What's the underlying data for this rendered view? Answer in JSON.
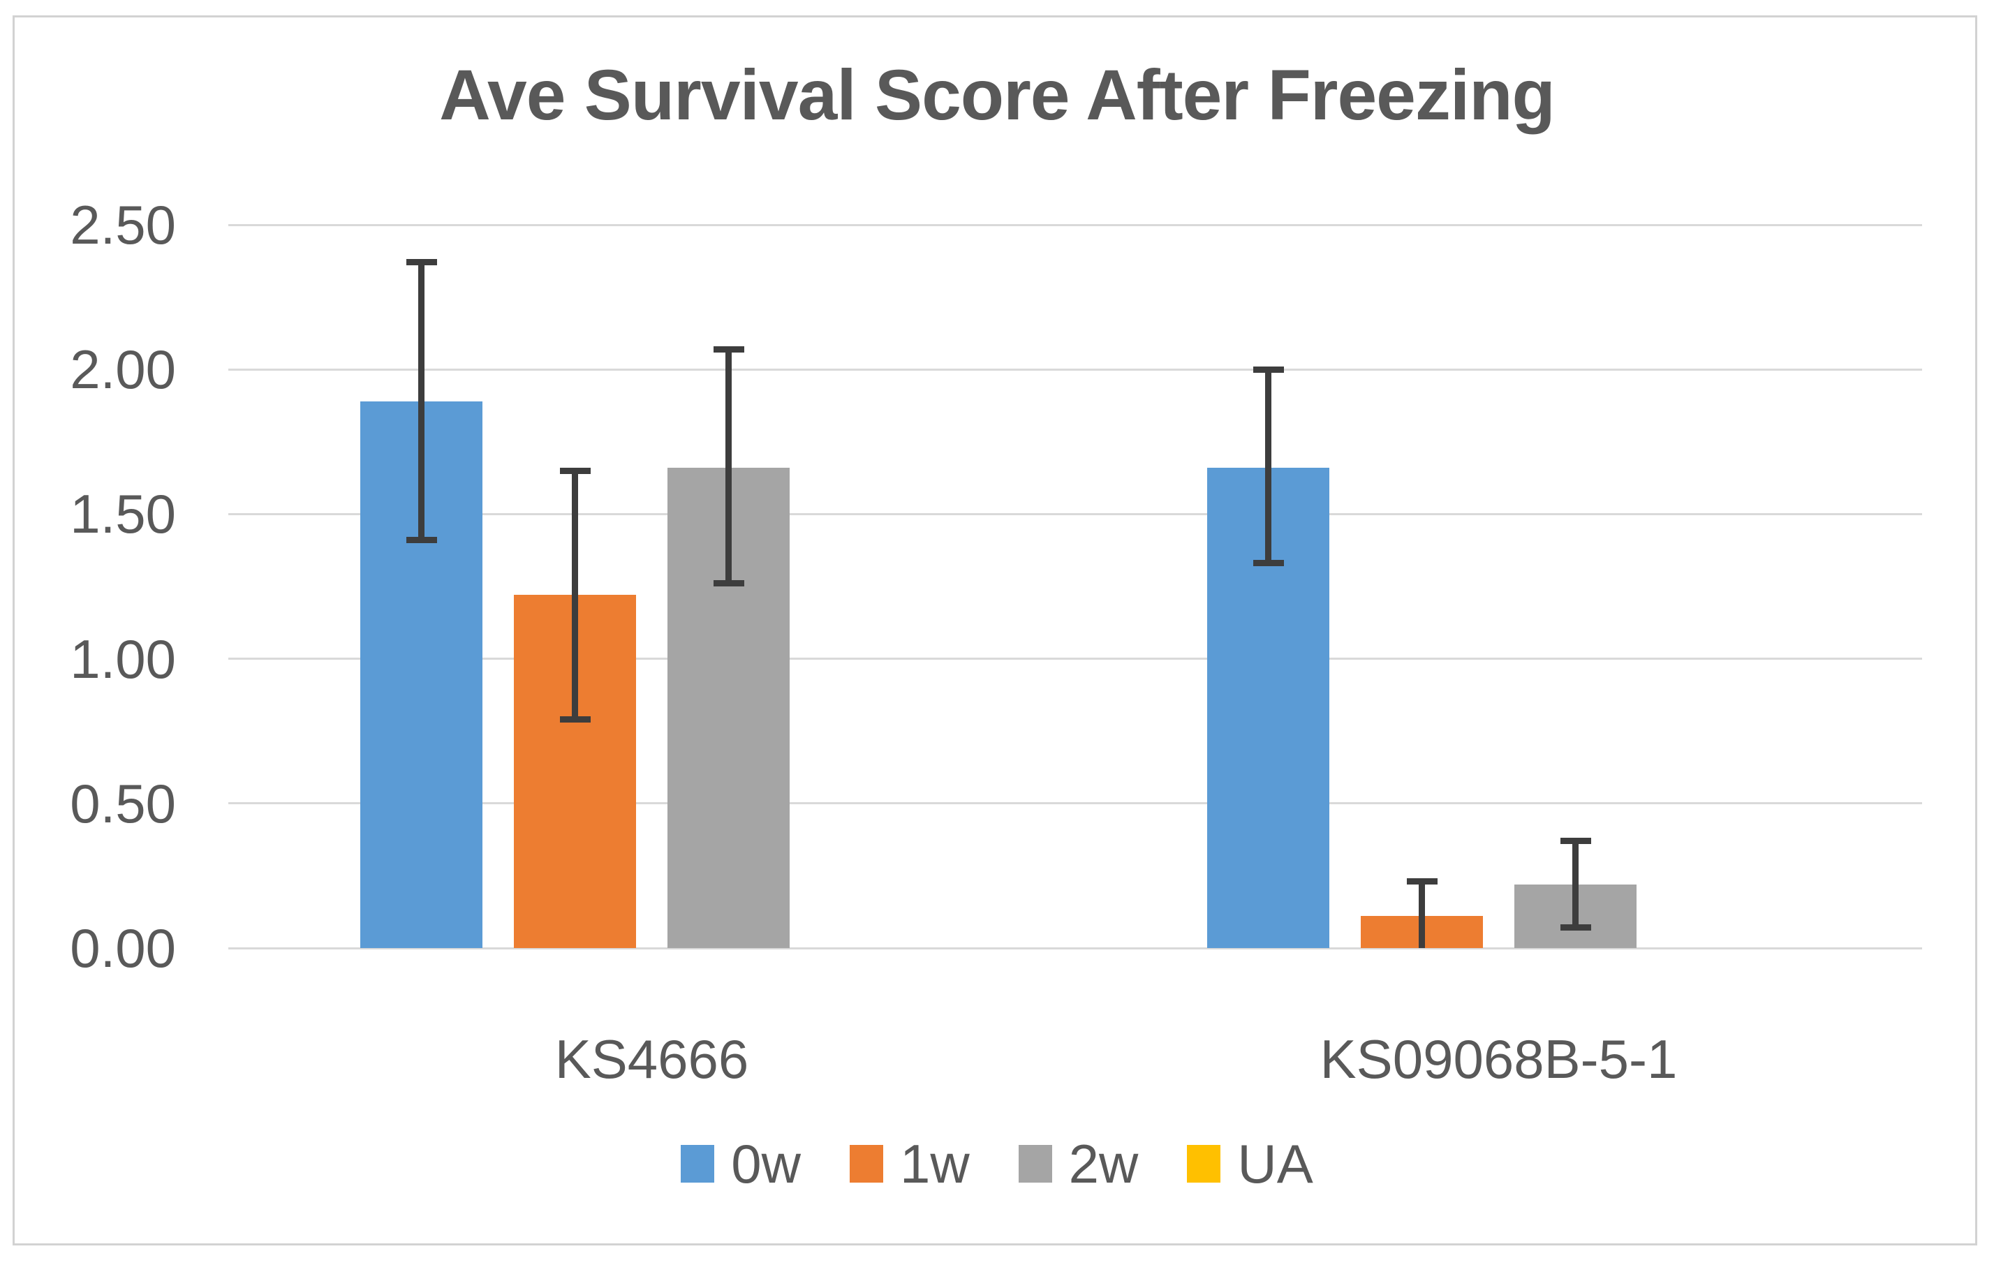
{
  "chart_data": {
    "type": "bar",
    "title": "Ave Survival Score After Freezing",
    "categories": [
      "KS4666",
      "KS09068B-5-1"
    ],
    "series": [
      {
        "name": "0w",
        "color": "#5B9BD5",
        "values": [
          1.89,
          1.66
        ],
        "err_hi": [
          2.37,
          2.0
        ],
        "err_lo": [
          1.41,
          1.33
        ]
      },
      {
        "name": "1w",
        "color": "#ED7D31",
        "values": [
          1.22,
          0.11
        ],
        "err_hi": [
          1.65,
          0.23
        ],
        "err_lo": [
          0.79,
          0.0
        ]
      },
      {
        "name": "2w",
        "color": "#A5A5A5",
        "values": [
          1.66,
          0.22
        ],
        "err_hi": [
          2.07,
          0.37
        ],
        "err_lo": [
          1.26,
          0.07
        ]
      },
      {
        "name": "UA",
        "color": "#FFC000",
        "values": [
          0,
          0
        ],
        "err_hi": [
          null,
          null
        ],
        "err_lo": [
          null,
          null
        ]
      }
    ],
    "ylim": [
      0,
      2.5
    ],
    "ytick_values": [
      0,
      0.5,
      1,
      1.5,
      2,
      2.5
    ],
    "ytick_labels": [
      "0.00",
      "0.50",
      "1.00",
      "1.50",
      "2.00",
      "2.50"
    ],
    "grid": true,
    "legend_position": "bottom",
    "error_bars": true
  },
  "styles": {
    "text_color": "#595959",
    "gridline_color": "#d9d9d9",
    "error_bar_color": "#3d3d3d",
    "frame_border_color": "#d2d2d2",
    "background": "#ffffff"
  }
}
